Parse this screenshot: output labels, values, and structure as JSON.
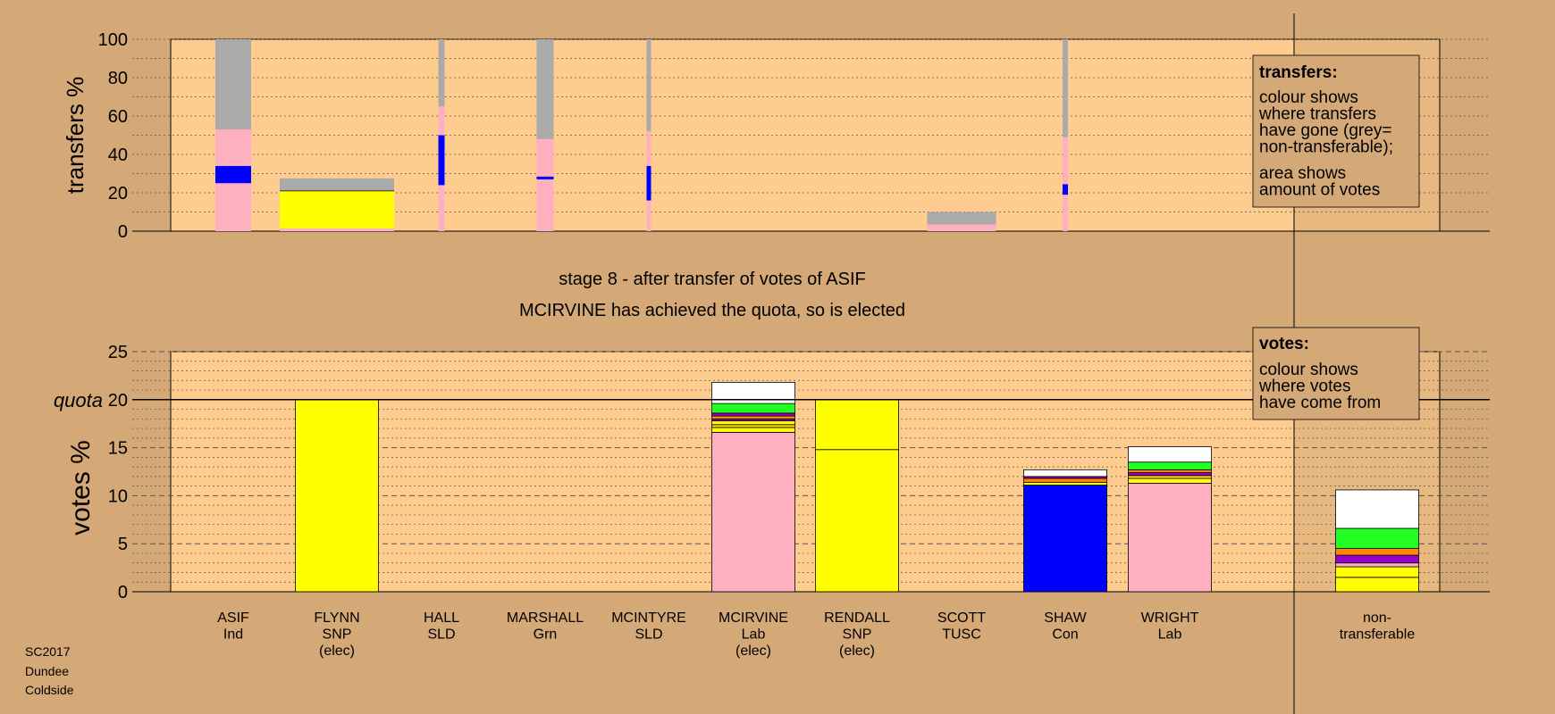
{
  "chart_data": {
    "type": "bar",
    "stage_title": "stage 8 - after transfer of votes of ASIF",
    "stage_subtitle": "MCIRVINE has achieved the quota, so is elected",
    "candidates": [
      {
        "name": "ASIF",
        "party": "Ind",
        "status": ""
      },
      {
        "name": "FLYNN",
        "party": "SNP",
        "status": "(elec)"
      },
      {
        "name": "HALL",
        "party": "SLD",
        "status": ""
      },
      {
        "name": "MARSHALL",
        "party": "Grn",
        "status": ""
      },
      {
        "name": "MCINTYRE",
        "party": "SLD",
        "status": ""
      },
      {
        "name": "MCIRVINE",
        "party": "Lab",
        "status": "(elec)"
      },
      {
        "name": "RENDALL",
        "party": "SNP",
        "status": "(elec)"
      },
      {
        "name": "SCOTT",
        "party": "TUSC",
        "status": ""
      },
      {
        "name": "SHAW",
        "party": "Con",
        "status": ""
      },
      {
        "name": "WRIGHT",
        "party": "Lab",
        "status": ""
      },
      {
        "name": "non-\ntransferable",
        "party": "",
        "status": ""
      }
    ],
    "transfers": {
      "ylabel": "transfers %",
      "ylim": [
        0,
        100
      ],
      "yticks": [
        0,
        20,
        40,
        60,
        80,
        100
      ],
      "bars": [
        {
          "candidate": "ASIF",
          "segments": [
            {
              "from": 0,
              "to": 25,
              "color": "#ffb0c0"
            },
            {
              "from": 25,
              "to": 34,
              "color": "#0000ff"
            },
            {
              "from": 34,
              "to": 53,
              "color": "#ffb0c0"
            },
            {
              "from": 53,
              "to": 100,
              "color": "#aaaaaa"
            }
          ]
        },
        {
          "candidate": "FLYNN",
          "segments": [
            {
              "from": 0,
              "to": 1.5,
              "color": "#ffb0c0"
            },
            {
              "from": 1.5,
              "to": 21,
              "color": "#ffff00"
            },
            {
              "from": 21,
              "to": 27.5,
              "color": "#aaaaaa"
            }
          ]
        },
        {
          "candidate": "HALL",
          "segments": [
            {
              "from": 0,
              "to": 24,
              "color": "#ffb0c0"
            },
            {
              "from": 24,
              "to": 50,
              "color": "#0000ff"
            },
            {
              "from": 50,
              "to": 65,
              "color": "#ffb0c0"
            },
            {
              "from": 65,
              "to": 100,
              "color": "#aaaaaa"
            }
          ]
        },
        {
          "candidate": "MARSHALL",
          "segments": [
            {
              "from": 0,
              "to": 27,
              "color": "#ffb0c0"
            },
            {
              "from": 27,
              "to": 28.5,
              "color": "#0000ff"
            },
            {
              "from": 28.5,
              "to": 48,
              "color": "#ffb0c0"
            },
            {
              "from": 48,
              "to": 100,
              "color": "#aaaaaa"
            }
          ]
        },
        {
          "candidate": "MCINTYRE",
          "segments": [
            {
              "from": 0,
              "to": 16,
              "color": "#ffb0c0"
            },
            {
              "from": 16,
              "to": 34,
              "color": "#0000ff"
            },
            {
              "from": 34,
              "to": 52,
              "color": "#ffb0c0"
            },
            {
              "from": 52,
              "to": 100,
              "color": "#aaaaaa"
            }
          ]
        },
        {
          "candidate": "SCOTT",
          "segments": [
            {
              "from": 0,
              "to": 3.5,
              "color": "#ffb0c0"
            },
            {
              "from": 3.5,
              "to": 10,
              "color": "#aaaaaa"
            }
          ]
        },
        {
          "candidate": "SHAW",
          "segments": [
            {
              "from": 0,
              "to": 19,
              "color": "#ffb0c0"
            },
            {
              "from": 19,
              "to": 24.5,
              "color": "#0000ff"
            },
            {
              "from": 24.5,
              "to": 49,
              "color": "#ffb0c0"
            },
            {
              "from": 49,
              "to": 100,
              "color": "#aaaaaa"
            }
          ]
        }
      ]
    },
    "votes": {
      "ylabel": "votes %",
      "quota_label": "quota",
      "quota": 20,
      "ylim": [
        0,
        25
      ],
      "yticks": [
        0,
        5,
        10,
        15,
        20,
        25
      ],
      "bars": [
        {
          "candidate": "FLYNN",
          "segments": [
            {
              "from": 0,
              "to": 20,
              "color": "#ffff00"
            }
          ]
        },
        {
          "candidate": "MCIRVINE",
          "segments": [
            {
              "from": 0,
              "to": 16.6,
              "color": "#ffb0c0"
            },
            {
              "from": 16.6,
              "to": 17.1,
              "color": "#ffff00"
            },
            {
              "from": 17.1,
              "to": 17.4,
              "color": "#ffd700"
            },
            {
              "from": 17.4,
              "to": 17.8,
              "color": "#ffff00"
            },
            {
              "from": 17.8,
              "to": 18.0,
              "color": "#9900cc"
            },
            {
              "from": 18.0,
              "to": 18.3,
              "color": "#ff8800"
            },
            {
              "from": 18.3,
              "to": 18.6,
              "color": "#9900cc"
            },
            {
              "from": 18.6,
              "to": 19.6,
              "color": "#22ff22"
            },
            {
              "from": 19.6,
              "to": 21.8,
              "color": "#ffffff"
            }
          ]
        },
        {
          "candidate": "RENDALL",
          "segments": [
            {
              "from": 0,
              "to": 14.8,
              "color": "#ffff00"
            },
            {
              "from": 14.8,
              "to": 20,
              "color": "#ffff00"
            }
          ]
        },
        {
          "candidate": "SHAW",
          "segments": [
            {
              "from": 0,
              "to": 11.1,
              "color": "#0000ff"
            },
            {
              "from": 11.1,
              "to": 11.4,
              "color": "#ffff00"
            },
            {
              "from": 11.4,
              "to": 11.8,
              "color": "#ff8800"
            },
            {
              "from": 11.8,
              "to": 12.0,
              "color": "#9900cc"
            },
            {
              "from": 12.0,
              "to": 12.7,
              "color": "#ffffff"
            }
          ]
        },
        {
          "candidate": "WRIGHT",
          "segments": [
            {
              "from": 0,
              "to": 11.3,
              "color": "#ffb0c0"
            },
            {
              "from": 11.3,
              "to": 11.8,
              "color": "#ffff00"
            },
            {
              "from": 11.8,
              "to": 12.1,
              "color": "#ffd700"
            },
            {
              "from": 12.1,
              "to": 12.4,
              "color": "#9900cc"
            },
            {
              "from": 12.4,
              "to": 12.7,
              "color": "#ff8800"
            },
            {
              "from": 12.7,
              "to": 13.5,
              "color": "#22ff22"
            },
            {
              "from": 13.5,
              "to": 15.1,
              "color": "#ffffff"
            }
          ]
        },
        {
          "candidate": "non-\ntransferable",
          "segments": [
            {
              "from": 0,
              "to": 1.5,
              "color": "#ffff00"
            },
            {
              "from": 1.5,
              "to": 2.6,
              "color": "#ffff00"
            },
            {
              "from": 2.6,
              "to": 3.0,
              "color": "#ffb0c0"
            },
            {
              "from": 3.0,
              "to": 3.8,
              "color": "#9900cc"
            },
            {
              "from": 3.8,
              "to": 4.5,
              "color": "#ff8800"
            },
            {
              "from": 4.5,
              "to": 6.6,
              "color": "#22ff22"
            },
            {
              "from": 6.6,
              "to": 10.6,
              "color": "#ffffff"
            }
          ]
        }
      ]
    },
    "legend_transfers": {
      "heading": "transfers:",
      "lines1": [
        "colour shows",
        "where transfers",
        "have gone (grey=",
        "non-transferable);"
      ],
      "lines2": [
        "area shows",
        "amount of votes"
      ]
    },
    "legend_votes": {
      "heading": "votes:",
      "lines1": [
        "colour shows",
        "where votes",
        "have come from"
      ]
    },
    "colors": {
      "background": "#d4a977",
      "plot_background": "#ffcc8f",
      "shaded_plot": "#e8b881"
    }
  },
  "footer": {
    "line1": "SC2017",
    "line2": "Dundee",
    "line3": "Coldside"
  }
}
